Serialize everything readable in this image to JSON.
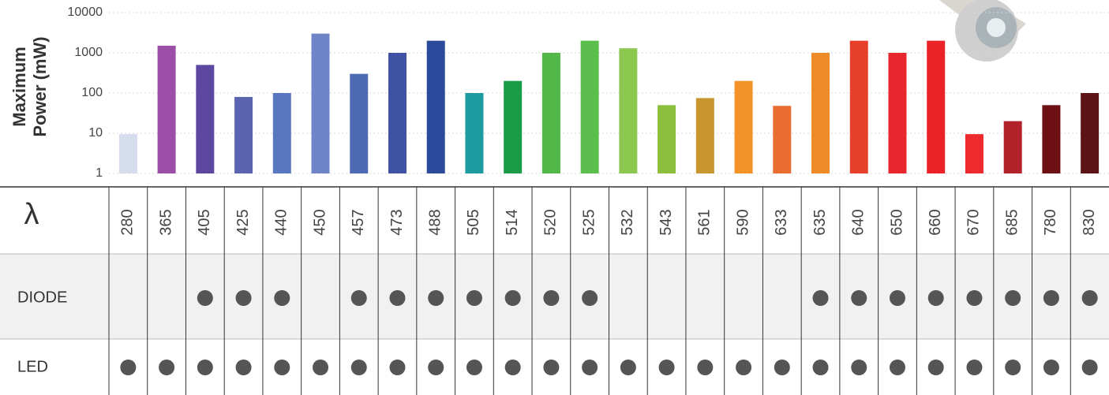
{
  "chart_data": {
    "type": "bar",
    "y_label": [
      "Maximum",
      "Power (mW)"
    ],
    "log_scale": true,
    "grid": true,
    "categories": [
      "280",
      "365",
      "405",
      "425",
      "440",
      "450",
      "457",
      "473",
      "488",
      "505",
      "514",
      "520",
      "525",
      "532",
      "543",
      "561",
      "590",
      "633",
      "635",
      "640",
      "650",
      "660",
      "670",
      "685",
      "780",
      "830"
    ],
    "values": [
      9.5,
      1500,
      500,
      80,
      100,
      3000,
      300,
      1000,
      2000,
      100,
      200,
      1000,
      2000,
      1300,
      50,
      75,
      200,
      48,
      1000,
      2000,
      1000,
      2000,
      9.5,
      20,
      50,
      100
    ],
    "colors": [
      "#d5dcec",
      "#9b4fa6",
      "#5c48a0",
      "#5a64b0",
      "#5877c0",
      "#6f85c8",
      "#4e6ab5",
      "#3f52a3",
      "#2b4a9b",
      "#1d9ba0",
      "#1a9b48",
      "#52b848",
      "#5cbf4d",
      "#8cc850",
      "#8bbf3c",
      "#c8962e",
      "#f39226",
      "#e96d30",
      "#ef8a28",
      "#e6402a",
      "#e8262d",
      "#ec2229",
      "#ee2a2e",
      "#b3222a",
      "#6d1014",
      "#5c1315"
    ],
    "ylim": [
      1,
      10000
    ],
    "yticks": [
      1,
      10,
      100,
      1000,
      10000
    ]
  },
  "table": {
    "header": "λ",
    "rows": [
      {
        "label": "DIODE",
        "marks": [
          false,
          false,
          true,
          true,
          true,
          false,
          true,
          true,
          true,
          true,
          true,
          true,
          true,
          false,
          false,
          false,
          false,
          false,
          true,
          true,
          true,
          true,
          true,
          true,
          true,
          true
        ]
      },
      {
        "label": "LED",
        "marks": [
          true,
          true,
          true,
          true,
          true,
          true,
          true,
          true,
          true,
          true,
          true,
          true,
          true,
          true,
          true,
          true,
          true,
          true,
          true,
          true,
          true,
          true,
          true,
          true,
          true,
          true
        ]
      }
    ]
  }
}
